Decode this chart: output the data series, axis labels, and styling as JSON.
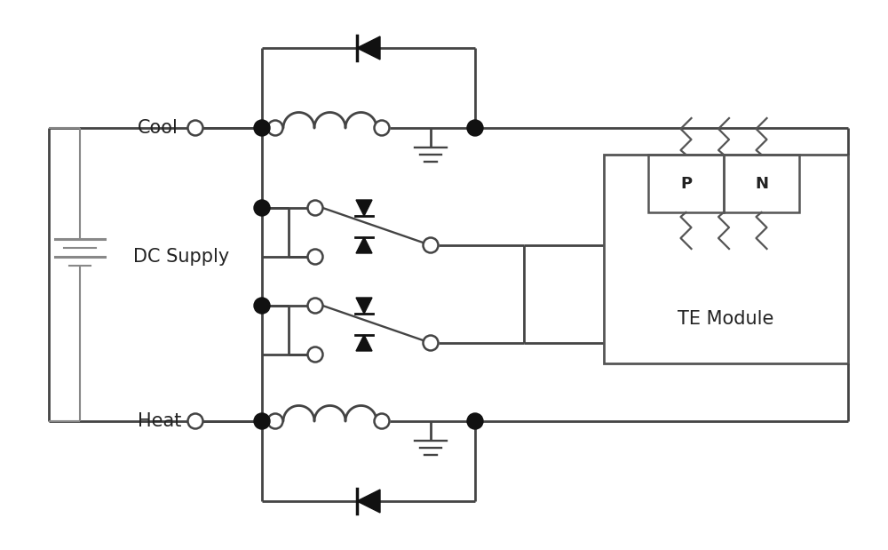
{
  "bg_color": "#ffffff",
  "line_color": "#444444",
  "line_width": 2.0,
  "labels": {
    "cool": "Cool",
    "heat": "Heat",
    "dc_supply": "DC Supply",
    "te_module": "TE Module",
    "P": "P",
    "N": "N"
  },
  "font_size_large": 15,
  "font_size_medium": 13,
  "figsize": [
    10.0,
    6.19
  ],
  "dpi": 100,
  "xlim": [
    0,
    10
  ],
  "ylim": [
    0,
    6.19
  ]
}
